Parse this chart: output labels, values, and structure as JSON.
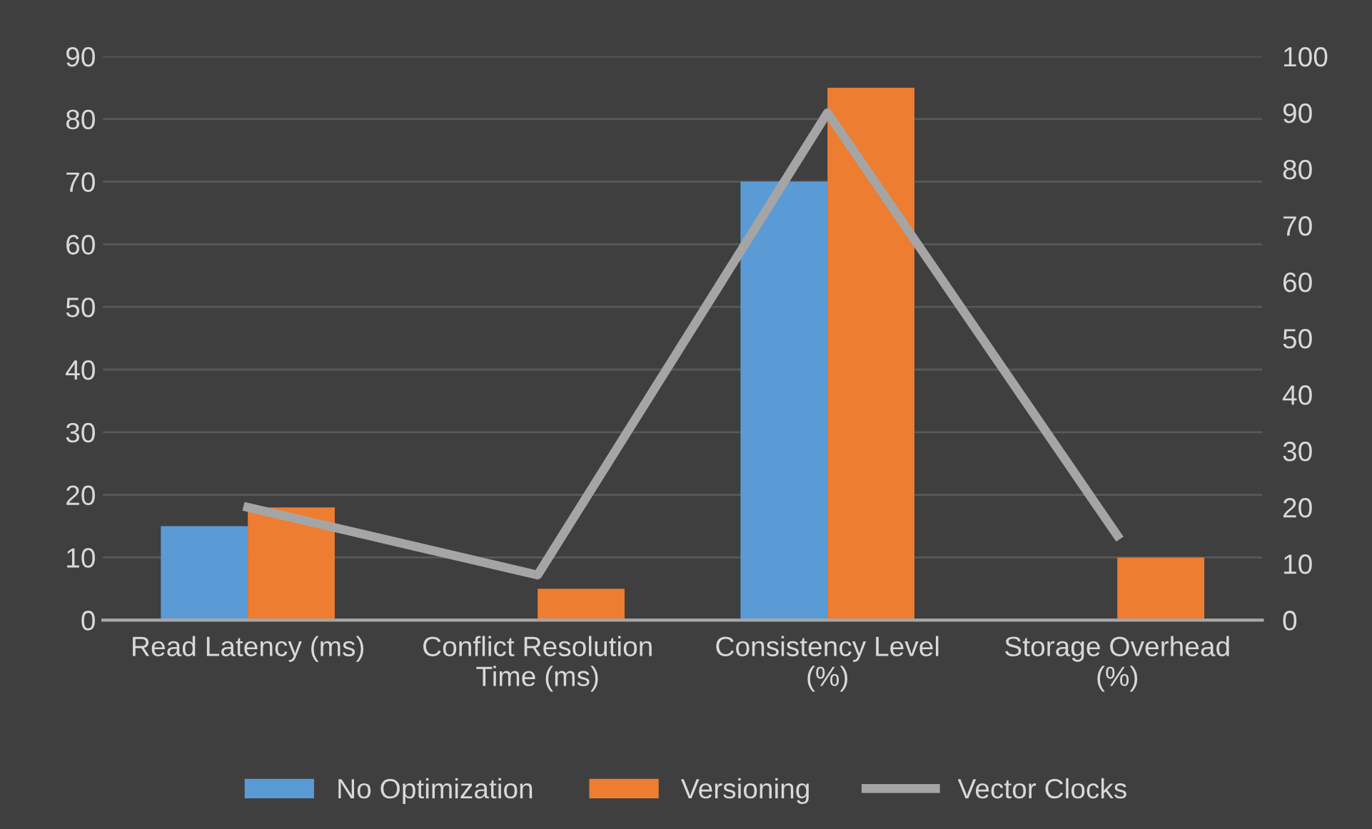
{
  "chart_data": {
    "type": "bar",
    "categories": [
      "Read Latency (ms)",
      "Conflict Resolution\nTime (ms)",
      "Consistency Level\n(%)",
      "Storage Overhead\n(%)"
    ],
    "series": [
      {
        "name": "No Optimization",
        "color": "#5b9bd5",
        "values": [
          15,
          null,
          70,
          null
        ]
      },
      {
        "name": "Versioning",
        "color": "#ed7d31",
        "values": [
          18,
          5,
          85,
          10
        ]
      },
      {
        "name": "Vector Clocks",
        "type": "line",
        "axis": "y2",
        "color": "#a5a5a5",
        "values": [
          20,
          8,
          90,
          15
        ]
      }
    ],
    "ylim": [
      0,
      90
    ],
    "yticks": [
      0,
      10,
      20,
      30,
      40,
      50,
      60,
      70,
      80,
      90
    ],
    "y2lim": [
      0,
      100
    ],
    "y2ticks": [
      0,
      10,
      20,
      30,
      40,
      50,
      60,
      70,
      80,
      90,
      100
    ],
    "grid": "y",
    "legend": "bottom",
    "marker": "none",
    "line_style": "solid"
  }
}
